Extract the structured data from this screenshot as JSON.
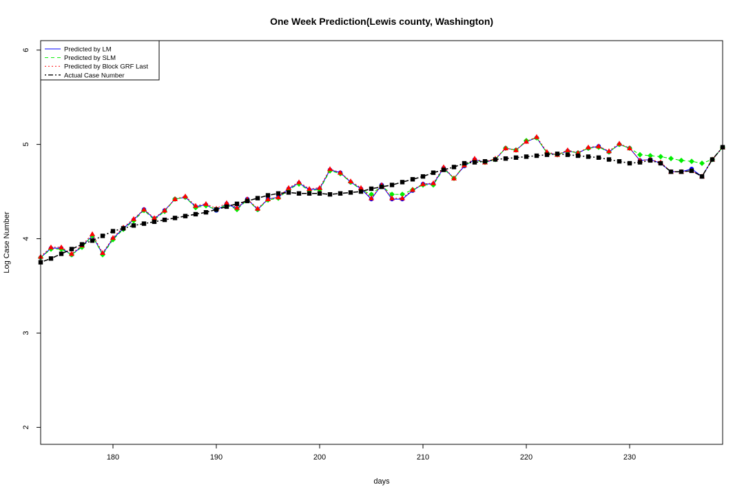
{
  "chart_data": {
    "type": "line",
    "title": "One Week Prediction(Lewis county, Washington)",
    "xlabel": "days",
    "ylabel": "Log Case Number",
    "xlim": [
      173,
      239
    ],
    "ylim": [
      1.82,
      6.1
    ],
    "x_ticks": [
      180,
      190,
      200,
      210,
      220,
      230
    ],
    "y_ticks": [
      2,
      3,
      4,
      5,
      6
    ],
    "grid": false,
    "legend_position": "top-left",
    "x": [
      173,
      174,
      175,
      176,
      177,
      178,
      179,
      180,
      181,
      182,
      183,
      184,
      185,
      186,
      187,
      188,
      189,
      190,
      191,
      192,
      193,
      194,
      195,
      196,
      197,
      198,
      199,
      200,
      201,
      202,
      203,
      204,
      205,
      206,
      207,
      208,
      209,
      210,
      211,
      212,
      213,
      214,
      215,
      216,
      217,
      218,
      219,
      220,
      221,
      222,
      223,
      224,
      225,
      226,
      227,
      228,
      229,
      230,
      231,
      232,
      233,
      234,
      235,
      236,
      237,
      238,
      239
    ],
    "series": [
      {
        "name": "Predicted by LM",
        "color": "#0000ff",
        "line_style": "solid",
        "marker": "circle",
        "values": [
          3.8,
          3.9,
          3.9,
          3.83,
          3.92,
          4.03,
          3.84,
          4.0,
          4.11,
          4.2,
          4.31,
          4.21,
          4.3,
          4.42,
          4.44,
          4.34,
          4.36,
          4.3,
          4.37,
          4.32,
          4.42,
          4.31,
          4.42,
          4.44,
          4.53,
          4.59,
          4.52,
          4.53,
          4.73,
          4.7,
          4.6,
          4.53,
          4.42,
          4.57,
          4.42,
          4.42,
          4.51,
          4.58,
          4.58,
          4.75,
          4.64,
          4.77,
          4.84,
          4.81,
          4.84,
          4.96,
          4.94,
          5.03,
          5.07,
          4.91,
          4.89,
          4.93,
          4.91,
          4.96,
          4.98,
          4.92,
          5.0,
          4.96,
          4.83,
          4.84,
          4.8,
          4.71,
          4.71,
          4.74,
          4.66,
          4.84,
          4.97
        ]
      },
      {
        "name": "Predicted by SLM",
        "color": "#00ee00",
        "line_style": "dashed",
        "marker": "diamond",
        "values": [
          3.8,
          3.89,
          3.89,
          3.83,
          3.91,
          4.03,
          3.83,
          3.99,
          4.1,
          4.19,
          4.3,
          4.2,
          4.29,
          4.42,
          4.44,
          4.33,
          4.35,
          4.31,
          4.36,
          4.31,
          4.41,
          4.31,
          4.41,
          4.43,
          4.52,
          4.58,
          4.51,
          4.52,
          4.72,
          4.69,
          4.6,
          4.52,
          4.47,
          4.56,
          4.47,
          4.47,
          4.52,
          4.57,
          4.57,
          4.74,
          4.64,
          4.78,
          4.83,
          4.81,
          4.84,
          4.96,
          4.94,
          5.04,
          5.07,
          4.91,
          4.89,
          4.93,
          4.91,
          4.96,
          4.97,
          4.92,
          5.0,
          4.96,
          4.89,
          4.88,
          4.87,
          4.85,
          4.83,
          4.82,
          4.8,
          4.84,
          4.97
        ]
      },
      {
        "name": "Predicted by Block GRF Last",
        "color": "#ff0000",
        "line_style": "dotted",
        "marker": "triangle",
        "values": [
          3.81,
          3.91,
          3.91,
          3.84,
          3.93,
          4.05,
          3.85,
          4.01,
          4.12,
          4.21,
          4.31,
          4.22,
          4.3,
          4.42,
          4.45,
          4.35,
          4.37,
          4.32,
          4.38,
          4.33,
          4.42,
          4.32,
          4.42,
          4.44,
          4.54,
          4.6,
          4.53,
          4.54,
          4.74,
          4.7,
          4.61,
          4.54,
          4.43,
          4.57,
          4.43,
          4.43,
          4.52,
          4.58,
          4.59,
          4.76,
          4.64,
          4.78,
          4.85,
          4.81,
          4.85,
          4.96,
          4.94,
          5.03,
          5.08,
          4.92,
          4.89,
          4.94,
          4.91,
          4.97,
          4.98,
          4.93,
          5.01,
          4.96,
          4.83,
          4.84,
          4.81,
          4.71,
          4.71,
          4.72,
          4.66,
          4.84,
          4.97
        ]
      },
      {
        "name": "Actual Case Number",
        "color": "#000000",
        "line_style": "dotdash",
        "marker": "square",
        "values": [
          3.75,
          3.79,
          3.84,
          3.89,
          3.94,
          3.98,
          4.03,
          4.08,
          4.11,
          4.14,
          4.16,
          4.18,
          4.2,
          4.22,
          4.24,
          4.26,
          4.28,
          4.31,
          4.34,
          4.37,
          4.4,
          4.43,
          4.46,
          4.48,
          4.49,
          4.48,
          4.48,
          4.48,
          4.47,
          4.48,
          4.49,
          4.5,
          4.53,
          4.55,
          4.57,
          4.6,
          4.63,
          4.66,
          4.7,
          4.73,
          4.76,
          4.8,
          4.81,
          4.82,
          4.84,
          4.85,
          4.86,
          4.87,
          4.88,
          4.89,
          4.9,
          4.89,
          4.88,
          4.87,
          4.86,
          4.84,
          4.82,
          4.8,
          4.81,
          4.83,
          4.8,
          4.71,
          4.71,
          4.72,
          4.66,
          4.84,
          4.97
        ]
      }
    ]
  }
}
